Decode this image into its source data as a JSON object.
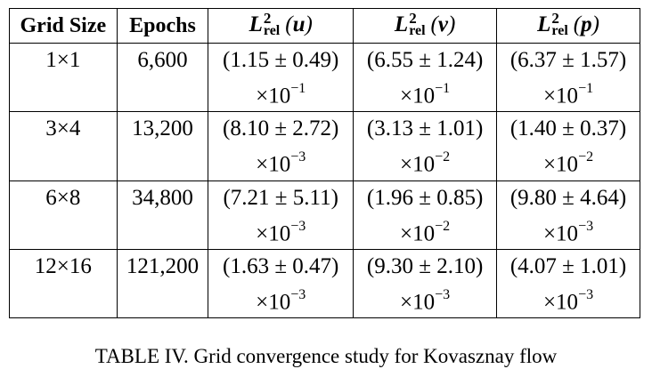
{
  "table": {
    "headers": {
      "grid_size": "Grid Size",
      "epochs": "Epochs",
      "l_symbol": "L",
      "l_superscript": "2",
      "l_subscript": "rel",
      "u_var": "u",
      "v_var": "v",
      "p_var": "p"
    },
    "rows": [
      {
        "grid": "1×1",
        "epochs": "6,600",
        "u_val": "(1.15 ± 0.49)",
        "u_exp": "−1",
        "v_val": "(6.55 ± 1.24)",
        "v_exp": "−1",
        "p_val": "(6.37 ± 1.57)",
        "p_exp": "−1"
      },
      {
        "grid": "3×4",
        "epochs": "13,200",
        "u_val": "(8.10 ± 2.72)",
        "u_exp": "−3",
        "v_val": "(3.13 ± 1.01)",
        "v_exp": "−2",
        "p_val": "(1.40 ± 0.37)",
        "p_exp": "−2"
      },
      {
        "grid": "6×8",
        "epochs": "34,800",
        "u_val": "(7.21 ± 5.11)",
        "u_exp": "−3",
        "v_val": "(1.96 ± 0.85)",
        "v_exp": "−2",
        "p_val": "(9.80 ± 4.64)",
        "p_exp": "−3"
      },
      {
        "grid": "12×16",
        "epochs": "121,200",
        "u_val": "(1.63 ± 0.47)",
        "u_exp": "−3",
        "v_val": "(9.30 ± 2.10)",
        "v_exp": "−3",
        "p_val": "(4.07 ± 1.01)",
        "p_exp": "−3"
      }
    ],
    "multiplier": "×10"
  },
  "caption": "TABLE IV. Grid convergence study for Kovasznay flow"
}
